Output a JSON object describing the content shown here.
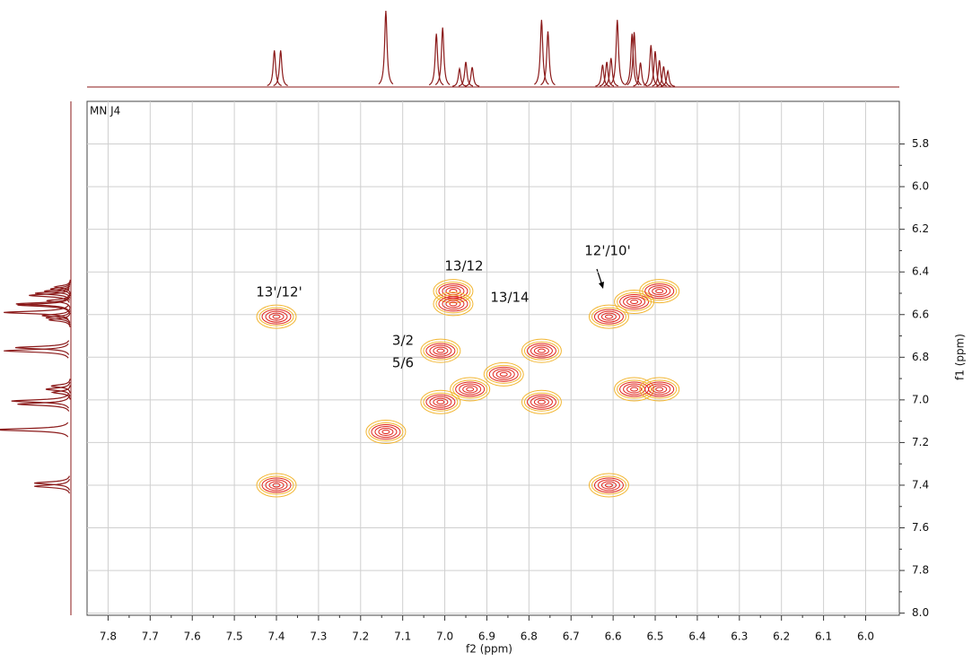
{
  "chart_data": {
    "type": "cosy",
    "panel_label": "MN J4",
    "x_label": "f2 (ppm)",
    "y_label": "f1 (ppm)",
    "xlim": [
      7.85,
      5.92
    ],
    "ylim": [
      5.6,
      8.01
    ],
    "xticks": [
      7.8,
      7.7,
      7.6,
      7.5,
      7.4,
      7.3,
      7.2,
      7.1,
      {
        "value": 7,
        "label": "7.0"
      },
      6.9,
      6.8,
      6.7,
      6.6,
      6.5,
      6.4,
      6.3,
      6.2,
      6.1,
      {
        "value": 6,
        "label": "6.0"
      }
    ],
    "yticks": [
      5.8,
      {
        "value": 6,
        "label": "6.0"
      },
      6.2,
      6.4,
      6.6,
      6.8,
      {
        "value": 7,
        "label": "7.0"
      },
      7.2,
      7.4,
      7.6,
      7.8,
      {
        "value": 8,
        "label": "8.0"
      }
    ],
    "grid": true,
    "trace_color": "#8b1a1a",
    "outer_color": "#f2b632",
    "inner_color": "#e0241b",
    "projection": {
      "shifts": [
        7.405,
        7.39,
        7.14,
        7.02,
        7.005,
        6.965,
        6.95,
        6.935,
        6.77,
        6.755,
        6.625,
        6.615,
        6.605,
        6.59,
        6.555,
        6.55,
        6.535,
        6.51,
        6.5,
        6.49,
        6.48,
        6.47
      ],
      "heights": [
        48,
        48,
        100,
        70,
        78,
        24,
        33,
        26,
        88,
        73,
        29,
        33,
        38,
        88,
        70,
        72,
        32,
        55,
        47,
        35,
        27,
        21
      ]
    },
    "cross_peaks": {
      "f2": [
        7.4,
        7.4,
        7.01,
        7.01,
        6.94,
        6.98,
        6.98,
        6.77,
        6.77,
        6.61,
        6.61,
        6.55,
        6.49,
        6.55,
        6.49,
        7.14,
        6.86
      ],
      "f1": [
        6.61,
        7.4,
        6.77,
        7.01,
        6.95,
        6.49,
        6.55,
        6.77,
        7.01,
        6.61,
        7.4,
        6.54,
        6.49,
        6.95,
        6.95,
        7.15,
        6.88
      ]
    },
    "annotations": [
      "13'/12'",
      "13/12",
      "13/14",
      "3/2",
      "5/6",
      "12'/10'"
    ]
  }
}
